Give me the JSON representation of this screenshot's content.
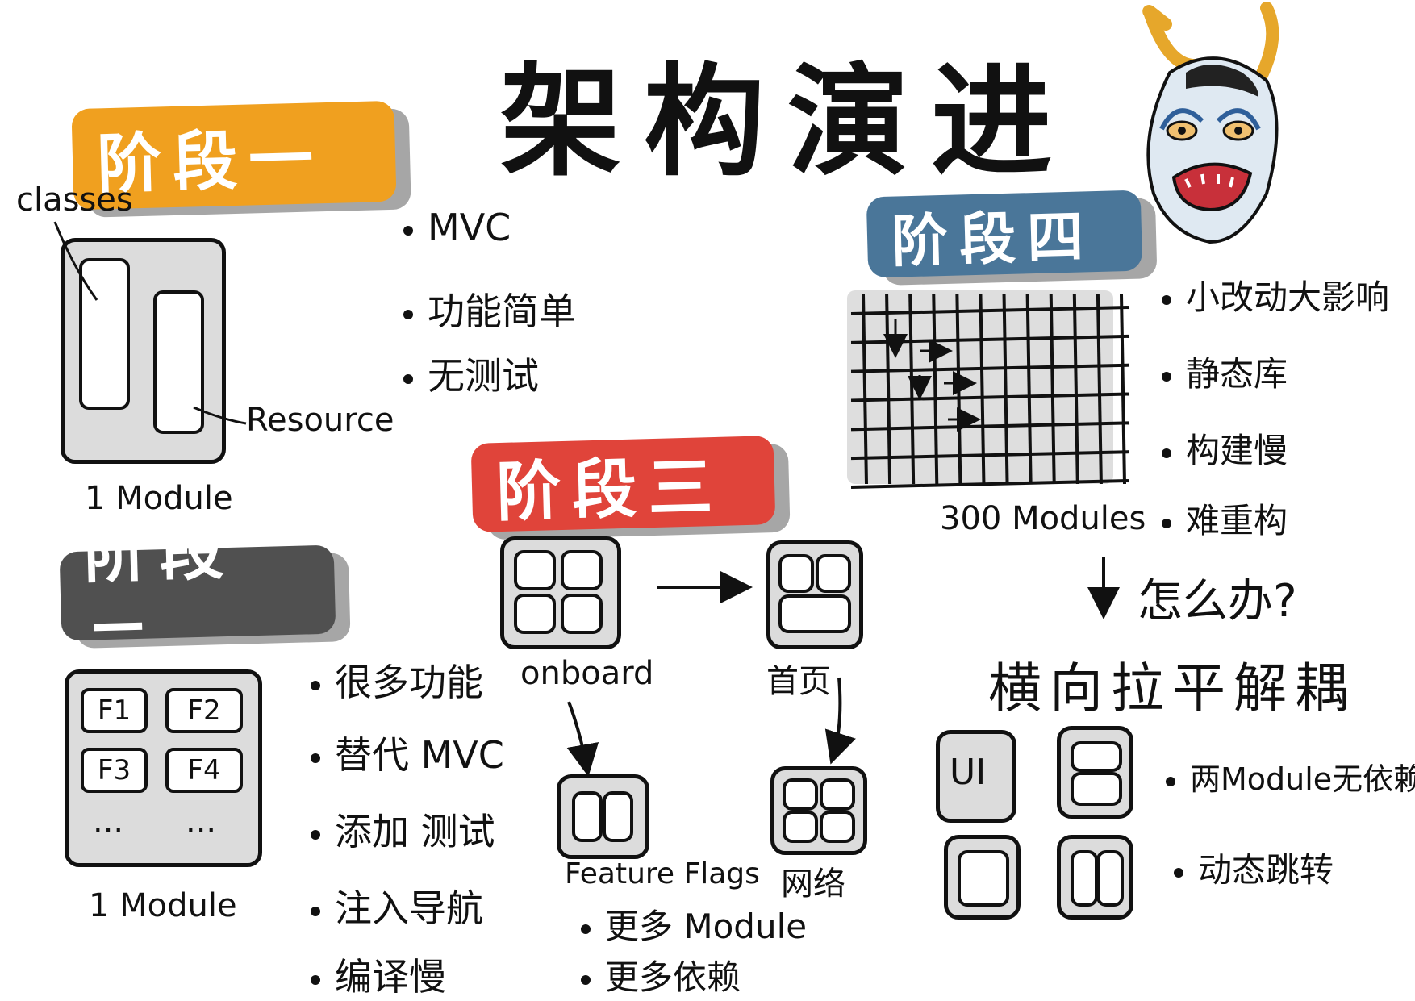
{
  "title": "架构演进",
  "stage1": {
    "banner": "阶段一",
    "label_classes": "classes",
    "label_resource": "Resource",
    "label_module": "1 Module",
    "bullets": [
      "MVC",
      "功能简单",
      "无测试"
    ]
  },
  "stage2": {
    "banner": "阶段二",
    "features": [
      "F1",
      "F2",
      "F3",
      "F4"
    ],
    "ellipsis": [
      "...",
      "..."
    ],
    "label_module": "1 Module",
    "bullets": [
      "很多功能",
      "替代 MVC",
      "添加 测试",
      "注入导航",
      "编译慢"
    ]
  },
  "stage3": {
    "banner": "阶段三",
    "label_onboard": "onboard",
    "label_home": "首页",
    "label_feature_flags": "Feature Flags",
    "label_network": "网络",
    "bullets": [
      "更多 Module",
      "更多依赖"
    ]
  },
  "stage4": {
    "banner": "阶段四",
    "label_modules": "300 Modules",
    "bullets": [
      "小改动大影响",
      "静态库",
      "构建慢",
      "难重构"
    ],
    "question": "怎么办?",
    "solution": "横向拉平解耦",
    "ui_label": "UI",
    "solution_bullets": [
      "两Module无依赖",
      "动态跳转"
    ]
  },
  "colors": {
    "stage1": "#F0A01F",
    "stage2": "#505050",
    "stage3": "#E0443A",
    "stage4": "#4A7699"
  },
  "icons": [
    "oni-mask-icon",
    "arrow-right-icon",
    "arrow-down-icon"
  ]
}
